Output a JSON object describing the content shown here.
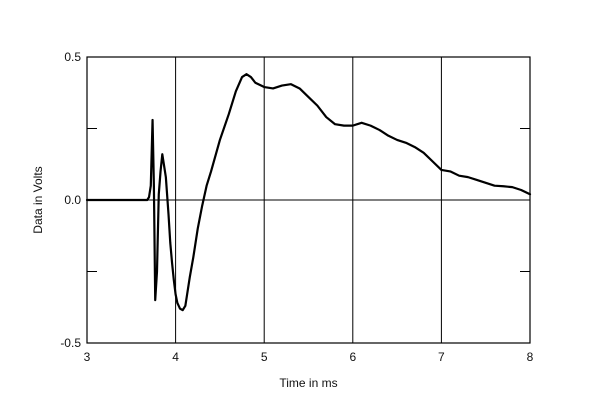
{
  "chart_data": {
    "type": "line",
    "title": "",
    "xlabel": "Time in ms",
    "ylabel": "Data in Volts",
    "xlim": [
      3,
      8
    ],
    "ylim": [
      -0.5,
      0.5
    ],
    "x_ticks": [
      3,
      4,
      5,
      6,
      7,
      8
    ],
    "x_tick_labels": [
      "3",
      "4",
      "5",
      "6",
      "7",
      "8"
    ],
    "y_ticks": [
      -0.5,
      0.0,
      0.5
    ],
    "y_tick_labels": [
      "-0.5",
      "0.0",
      "0.5"
    ],
    "grid": true,
    "legend": "none",
    "line_color": "#000000",
    "series": [
      {
        "x": [
          3.0,
          3.5,
          3.68,
          3.7,
          3.72,
          3.74,
          3.755,
          3.77,
          3.79,
          3.81,
          3.83,
          3.85,
          3.87,
          3.89,
          3.92,
          3.94,
          3.96,
          3.98,
          4.0,
          4.02,
          4.05,
          4.08,
          4.11,
          4.13,
          4.16,
          4.2,
          4.25,
          4.3,
          4.35,
          4.4,
          4.5,
          4.6,
          4.68,
          4.75,
          4.8,
          4.85,
          4.9,
          5.0,
          5.1,
          5.2,
          5.3,
          5.4,
          5.5,
          5.6,
          5.7,
          5.8,
          5.9,
          6.0,
          6.05,
          6.1,
          6.2,
          6.3,
          6.4,
          6.5,
          6.6,
          6.7,
          6.8,
          6.9,
          7.0,
          7.1,
          7.2,
          7.3,
          7.4,
          7.5,
          7.6,
          7.7,
          7.8,
          7.9,
          8.0
        ],
        "y": [
          0.0,
          0.0,
          0.0,
          0.01,
          0.05,
          0.28,
          0.05,
          -0.35,
          -0.25,
          0.02,
          0.1,
          0.16,
          0.12,
          0.08,
          -0.05,
          -0.15,
          -0.22,
          -0.28,
          -0.33,
          -0.36,
          -0.38,
          -0.385,
          -0.37,
          -0.33,
          -0.27,
          -0.2,
          -0.1,
          -0.02,
          0.05,
          0.1,
          0.21,
          0.3,
          0.38,
          0.43,
          0.44,
          0.43,
          0.41,
          0.395,
          0.39,
          0.4,
          0.405,
          0.39,
          0.36,
          0.33,
          0.29,
          0.265,
          0.26,
          0.26,
          0.265,
          0.27,
          0.26,
          0.245,
          0.225,
          0.21,
          0.2,
          0.185,
          0.165,
          0.135,
          0.105,
          0.1,
          0.085,
          0.08,
          0.07,
          0.06,
          0.05,
          0.048,
          0.045,
          0.035,
          0.02
        ]
      }
    ]
  }
}
